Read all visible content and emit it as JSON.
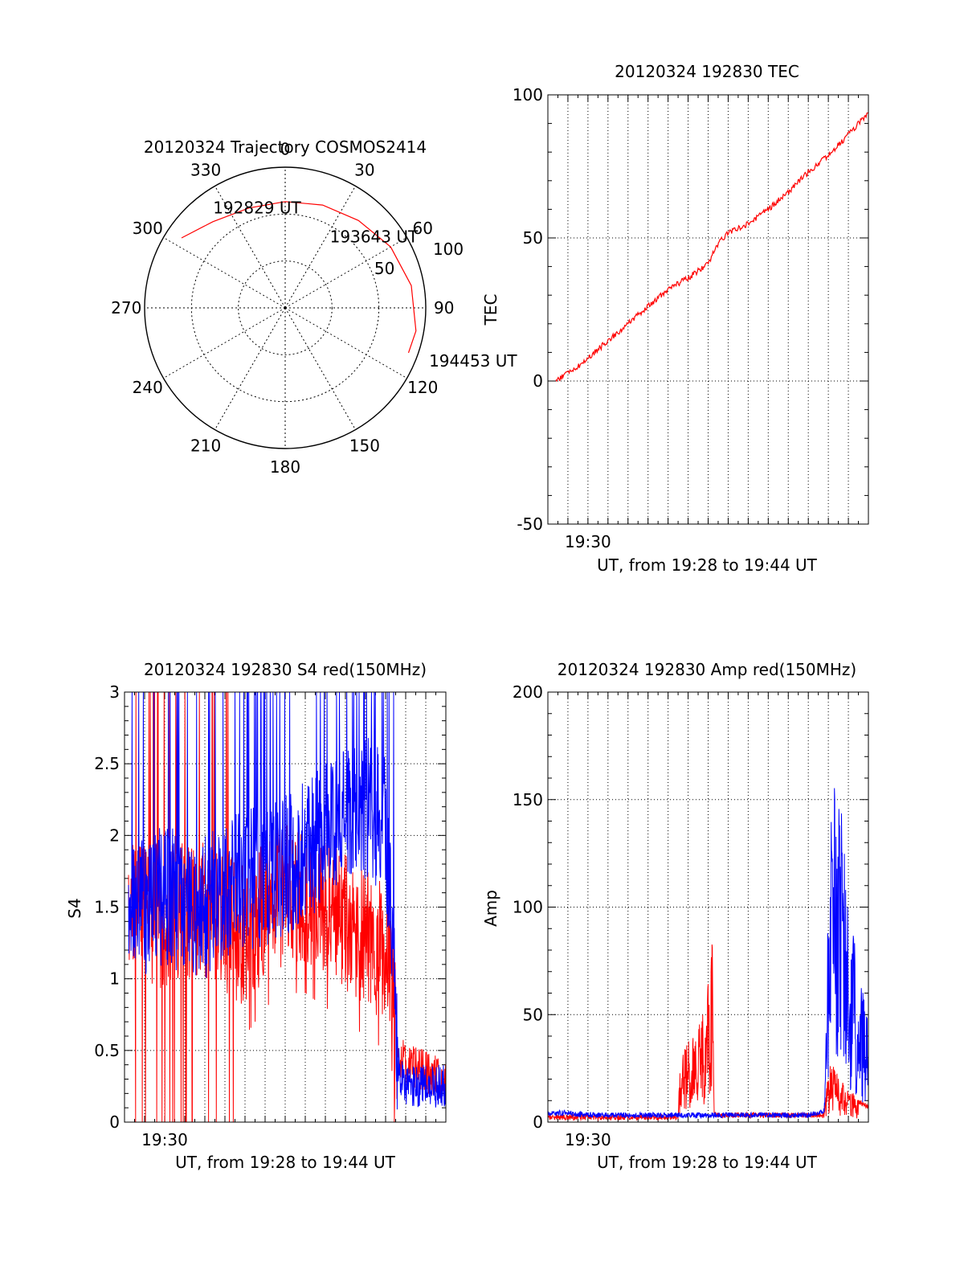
{
  "colors": {
    "red": "#ff0000",
    "blue": "#0000ff",
    "axis": "#000000",
    "grid": "#000000"
  },
  "chart_data": [
    {
      "id": "polar",
      "type": "scatter",
      "subtype": "polar-trajectory",
      "title": "20120324 Trajectory COSMOS2414",
      "azimuth_labels": [
        "0",
        "30",
        "60",
        "90",
        "120",
        "150",
        "180",
        "210",
        "240",
        "270",
        "300",
        "330"
      ],
      "radial_labels": [
        "50",
        "100"
      ],
      "rlim": [
        0,
        90
      ],
      "rings": [
        30,
        60,
        90
      ],
      "ring_radius_values": [
        50,
        100
      ],
      "trajectory": {
        "color": "red",
        "points": [
          {
            "az": -56,
            "r": 80
          },
          {
            "az": -40,
            "r": 72
          },
          {
            "az": -20,
            "r": 68
          },
          {
            "az": 0,
            "r": 68
          },
          {
            "az": 20,
            "r": 70
          },
          {
            "az": 40,
            "r": 73
          },
          {
            "az": 60,
            "r": 78
          },
          {
            "az": 80,
            "r": 82
          },
          {
            "az": 100,
            "r": 85
          },
          {
            "az": 110,
            "r": 84
          }
        ]
      },
      "time_labels": [
        "192829 UT",
        "193643 UT",
        "194453 UT"
      ],
      "time_label_pos": [
        {
          "az": -34,
          "r": 78
        },
        {
          "az": 42,
          "r": 62
        },
        {
          "az": 110,
          "r": 98
        }
      ]
    },
    {
      "id": "tec",
      "type": "line",
      "title": "20120324 192830 TEC",
      "ylabel": "TEC",
      "xlabel": "UT, from 19:28 to 19:44 UT",
      "xlim": [
        0,
        16
      ],
      "ylim": [
        -50,
        100
      ],
      "yticks": [
        -50,
        0,
        50,
        100
      ],
      "xtick_label": "19:30",
      "xtick_label_value": 2,
      "grid_x": [
        1,
        2,
        3,
        4,
        5,
        6,
        7,
        8,
        9,
        10,
        11,
        12,
        13,
        14,
        15
      ],
      "grid_y": [
        0,
        50
      ],
      "series": [
        {
          "name": "TEC",
          "color": "red",
          "x": [
            0.4,
            1,
            1.5,
            2,
            3,
            4,
            5,
            6,
            7,
            8,
            8.5,
            9,
            10,
            11,
            12,
            13,
            14,
            15,
            16
          ],
          "y": [
            0,
            3,
            5,
            8,
            14,
            20,
            26,
            32,
            36,
            41,
            48,
            52,
            55,
            60,
            66,
            73,
            79,
            86,
            94
          ]
        }
      ]
    },
    {
      "id": "s4",
      "type": "line",
      "title": "20120324 192830 S4 red(150MHz)",
      "ylabel": "S4",
      "xlabel": "UT, from 19:28 to 19:44 UT",
      "xlim": [
        0,
        16
      ],
      "ylim": [
        0,
        3
      ],
      "yticks": [
        "0",
        "0.5",
        "1",
        "1.5",
        "2",
        "2.5",
        "3"
      ],
      "ytick_values": [
        0,
        0.5,
        1,
        1.5,
        2,
        2.5,
        3
      ],
      "xtick_label": "19:30",
      "xtick_label_value": 2,
      "grid_x": [
        1,
        2,
        3,
        4,
        5,
        6,
        7,
        8,
        9,
        10,
        11,
        12,
        13,
        14,
        15
      ],
      "grid_y": [
        0.5,
        1,
        1.5,
        2,
        2.5
      ],
      "series": [
        {
          "name": "red (150MHz)",
          "color": "red",
          "x": [
            0.2,
            1,
            2,
            3,
            4,
            5,
            6,
            7,
            8,
            9,
            10,
            11,
            12,
            13,
            13.6,
            14,
            15,
            16
          ],
          "y": [
            1.5,
            1.5,
            1.4,
            1.5,
            1.5,
            1.4,
            1.3,
            1.5,
            1.6,
            1.6,
            1.5,
            1.4,
            1.3,
            1.2,
            0.5,
            0.4,
            0.35,
            0.3
          ]
        },
        {
          "name": "blue",
          "color": "blue",
          "x": [
            0.2,
            1,
            2,
            3,
            4,
            5,
            6,
            7,
            8,
            9,
            10,
            11,
            12,
            13,
            13.6,
            14,
            15,
            16
          ],
          "y": [
            1.4,
            1.5,
            1.6,
            1.5,
            1.5,
            1.6,
            1.7,
            1.7,
            1.8,
            1.9,
            2.0,
            2.1,
            2.2,
            2.1,
            0.4,
            0.25,
            0.25,
            0.25
          ]
        }
      ]
    },
    {
      "id": "amp",
      "type": "line",
      "title": "20120324 192830 Amp red(150MHz)",
      "ylabel": "Amp",
      "xlabel": "UT, from 19:28 to 19:44 UT",
      "xlim": [
        0,
        16
      ],
      "ylim": [
        0,
        200
      ],
      "yticks": [
        0,
        50,
        100,
        150,
        200
      ],
      "xtick_label": "19:30",
      "xtick_label_value": 2,
      "grid_x": [
        1,
        2,
        3,
        4,
        5,
        6,
        7,
        8,
        9,
        10,
        11,
        12,
        13,
        14,
        15
      ],
      "grid_y": [
        50,
        100,
        150
      ],
      "series": [
        {
          "name": "red (150MHz)",
          "color": "red",
          "x": [
            0,
            6.5,
            6.6,
            7,
            7.5,
            8,
            8.2,
            8.3,
            13.8,
            14,
            14.5,
            15,
            15.5,
            16
          ],
          "y": [
            1,
            1,
            20,
            25,
            30,
            45,
            60,
            2,
            2,
            20,
            15,
            10,
            8,
            6
          ]
        },
        {
          "name": "blue",
          "color": "blue",
          "x": [
            0,
            1,
            2,
            3,
            4,
            5,
            6,
            7,
            8,
            9,
            10,
            11,
            12,
            13,
            13.8,
            14,
            14.3,
            14.6,
            15,
            15.5,
            16
          ],
          "y": [
            3,
            3,
            2,
            2,
            2,
            2,
            2,
            2,
            2,
            2,
            2,
            2,
            2,
            2,
            4,
            70,
            120,
            100,
            70,
            50,
            30
          ]
        }
      ]
    }
  ]
}
